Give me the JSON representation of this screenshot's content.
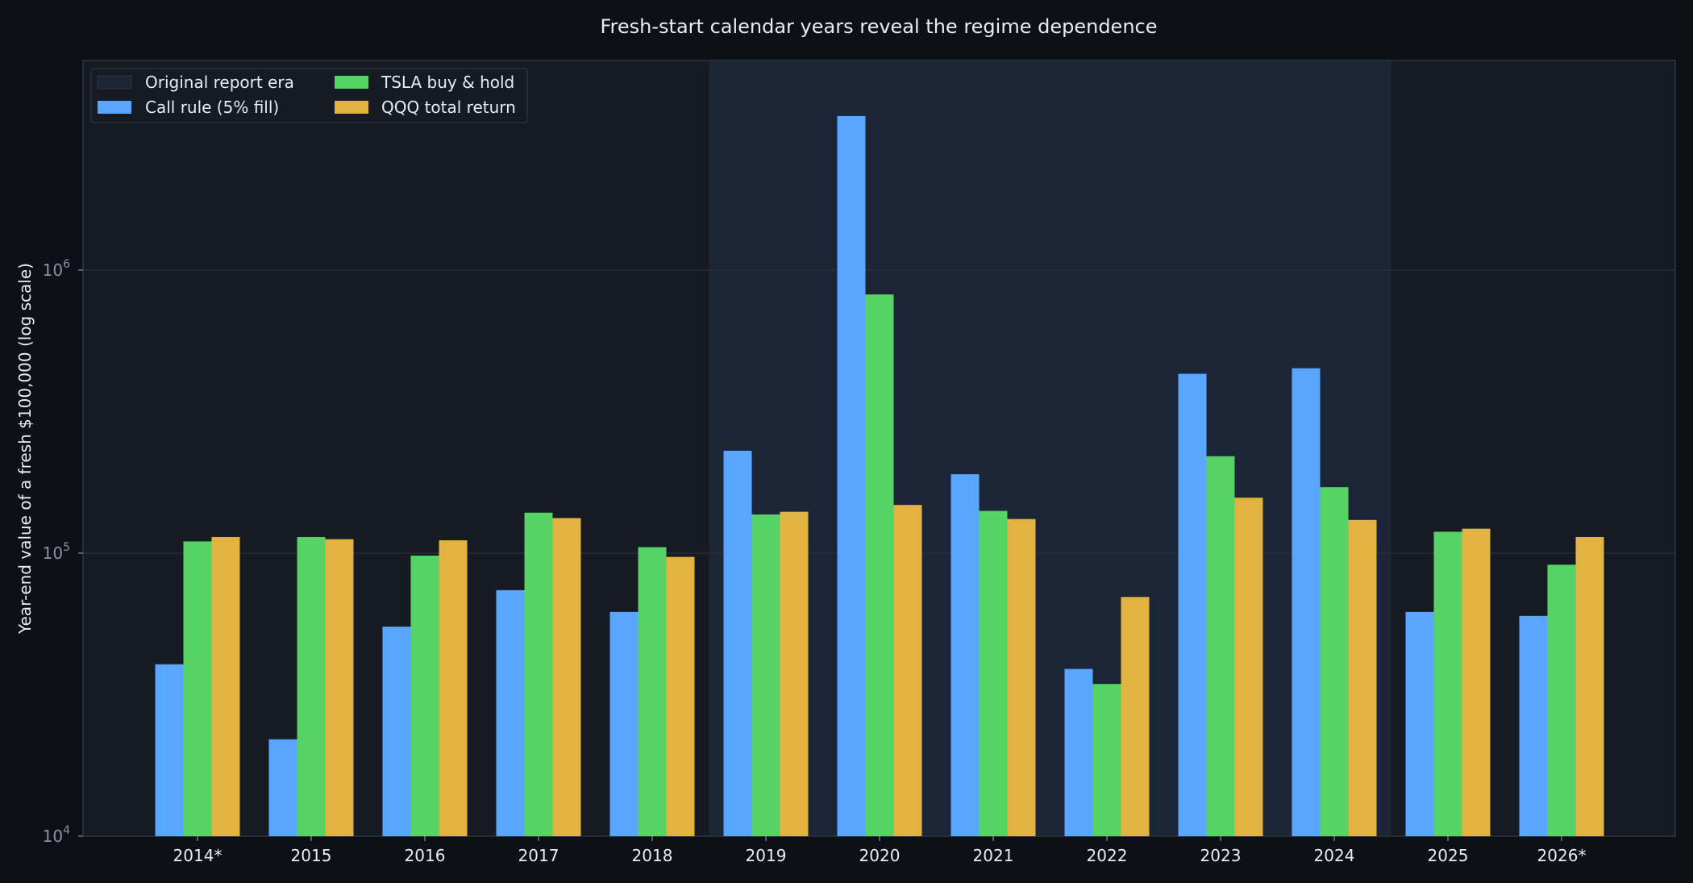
{
  "chart_data": {
    "type": "bar",
    "title": "Fresh-start calendar years reveal the regime dependence",
    "xlabel": "",
    "ylabel": "Year-end value of a fresh $100,000 (log scale)",
    "yscale": "log",
    "ylim": [
      10000,
      5500000
    ],
    "y_ticks": [
      {
        "value": 10000,
        "base": "10",
        "exp": "4"
      },
      {
        "value": 100000,
        "base": "10",
        "exp": "5"
      },
      {
        "value": 1000000,
        "base": "10",
        "exp": "6"
      }
    ],
    "grid": true,
    "legend_position": "top-left",
    "categories": [
      "2014*",
      "2015",
      "2016",
      "2017",
      "2018",
      "2019",
      "2020",
      "2021",
      "2022",
      "2023",
      "2024",
      "2025",
      "2026*"
    ],
    "highlight_span": {
      "label": "Original report era",
      "from": "2019",
      "to": "2024",
      "color": "#1c2535"
    },
    "series": [
      {
        "name": "Call rule (5% fill)",
        "color": "#58a6ff",
        "values": [
          40500,
          22000,
          55000,
          74000,
          62000,
          230000,
          3500000,
          190000,
          39000,
          430000,
          450000,
          62000,
          60000
        ]
      },
      {
        "name": "TSLA buy & hold",
        "color": "#56d364",
        "values": [
          110000,
          114000,
          98000,
          139000,
          105000,
          137000,
          820000,
          141000,
          34500,
          220000,
          171000,
          119000,
          91000
        ]
      },
      {
        "name": "QQQ total return",
        "color": "#e3b341",
        "values": [
          114000,
          112000,
          111000,
          133000,
          97000,
          140000,
          148000,
          132000,
          70000,
          157000,
          131000,
          122000,
          114000
        ]
      }
    ]
  },
  "colors": {
    "page_background": "#0d1017",
    "plot_background": "#161a22",
    "axis_text": "#e6edf3",
    "tick_text": "#8b949e",
    "grid": "#2d333b"
  }
}
